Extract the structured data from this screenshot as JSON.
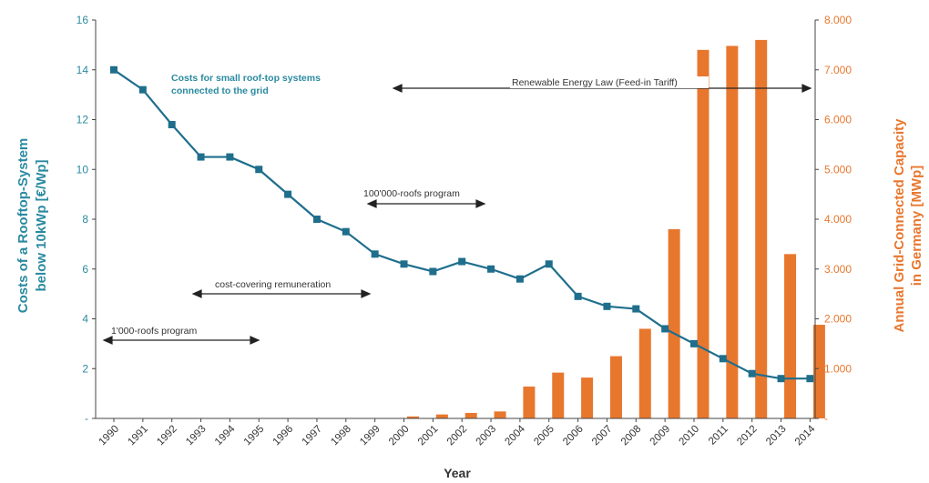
{
  "chart_data": {
    "type": "bar+line",
    "categories": [
      "1990",
      "1991",
      "1992",
      "1993",
      "1994",
      "1995",
      "1996",
      "1997",
      "1998",
      "1999",
      "2000",
      "2001",
      "2002",
      "2003",
      "2004",
      "2005",
      "2006",
      "2007",
      "2008",
      "2009",
      "2010",
      "2011",
      "2012",
      "2013",
      "2014"
    ],
    "xlabel": "Year",
    "left_axis": {
      "label_line1": "Costs of a Rooftop-System",
      "label_line2": "below 10kWp [€/Wp]",
      "ylim": [
        0,
        16
      ],
      "ticks": [
        "-",
        "2",
        "4",
        "6",
        "8",
        "10",
        "12",
        "14",
        "16"
      ],
      "color": "#2a8aa0"
    },
    "right_axis": {
      "label_line1": "Annual Grid-Connected Capacity",
      "label_line2": "in Germany [MWp]",
      "ylim": [
        0,
        8000
      ],
      "ticks": [
        "-",
        "1.000",
        "2.000",
        "3.000",
        "4.000",
        "5.000",
        "6.000",
        "7.000",
        "8.000"
      ],
      "color": "#e8772e"
    },
    "line_series": {
      "axis": "left",
      "color": "#1f6e8c",
      "values": [
        14.0,
        13.2,
        11.8,
        10.5,
        10.5,
        10.0,
        9.0,
        8.0,
        7.5,
        6.6,
        6.2,
        5.9,
        6.3,
        6.0,
        5.6,
        6.2,
        4.9,
        4.5,
        4.4,
        3.6,
        3.0,
        2.4,
        1.8,
        1.6,
        1.6
      ]
    },
    "bar_series": {
      "axis": "right",
      "color": "#e8772e",
      "values": [
        0,
        0,
        0,
        0,
        0,
        0,
        0,
        0,
        0,
        0,
        40,
        80,
        110,
        140,
        640,
        920,
        820,
        1250,
        1800,
        3800,
        7400,
        7480,
        7600,
        3300,
        1880
      ]
    },
    "annotations": [
      {
        "text": "Costs for small roof-top systems",
        "style": "teal"
      },
      {
        "text": "connected to the grid",
        "style": "teal"
      },
      {
        "text": "Renewable Energy Law (Feed-in Tariff)",
        "style": "plain"
      },
      {
        "text": "100'000-roofs program",
        "style": "plain"
      },
      {
        "text": "cost-covering remuneration",
        "style": "plain"
      },
      {
        "text": "1'000-roofs program",
        "style": "plain"
      }
    ],
    "grid": false
  }
}
